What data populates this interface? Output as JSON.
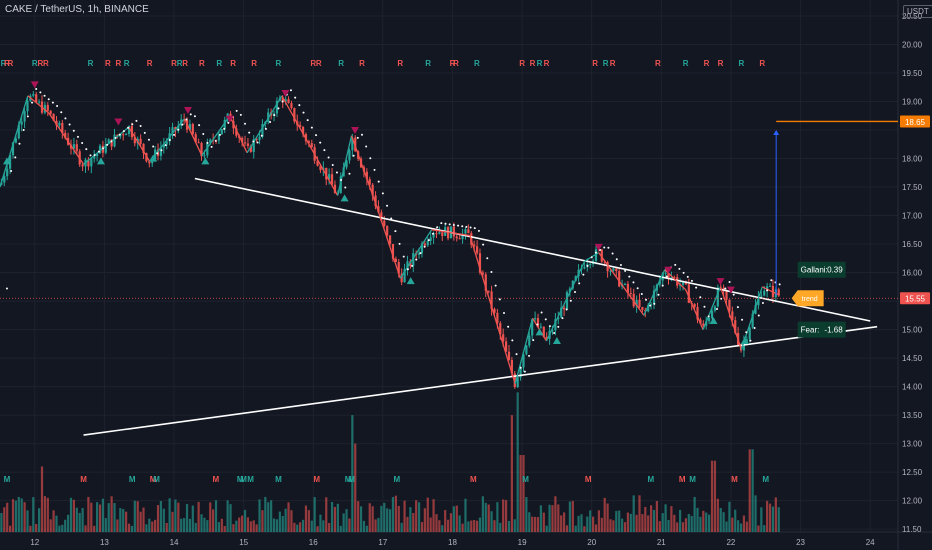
{
  "header": {
    "title": "CAKE / TetherUS, 1h, BINANCE",
    "currency": "USDT"
  },
  "colors": {
    "background": "#131722",
    "grid": "#1e222d",
    "up": "#26a69a",
    "down": "#ef5350",
    "zigzag_up": "#26a69a",
    "zigzag_down": "#ef5350",
    "trend": "#ffffff",
    "target": "#f57c00",
    "arrow": "#2962ff",
    "last_price": "#ef5350",
    "trend_label": "#ffa726",
    "marker_up": "#26a69a",
    "marker_down": "#ad1457"
  },
  "chart_data": {
    "type": "candlestick",
    "title": "CAKE / TetherUS, 1h, BINANCE",
    "x_ticks": [
      "12",
      "13",
      "14",
      "15",
      "16",
      "17",
      "18",
      "19",
      "20",
      "21",
      "22",
      "23",
      "24"
    ],
    "x_range": [
      11.5,
      24.4
    ],
    "y_range": [
      11.45,
      20.78
    ],
    "y_ticks": [
      "11.50",
      "12.00",
      "12.50",
      "13.00",
      "13.50",
      "14.00",
      "14.50",
      "15.00",
      "15.50",
      "16.00",
      "16.50",
      "17.00",
      "17.50",
      "18.00",
      "18.50",
      "19.00",
      "19.50",
      "20.00",
      "20.50"
    ],
    "last_price": {
      "value": 15.55,
      "label": "15.55"
    },
    "target": {
      "value": 18.65,
      "label": "18.65",
      "x_start": 22.65
    },
    "trendlines": [
      {
        "from": [
          14.3,
          17.65
        ],
        "to": [
          24.0,
          15.15
        ]
      },
      {
        "from": [
          12.7,
          13.15
        ],
        "to": [
          24.1,
          15.05
        ]
      }
    ],
    "arrow": {
      "x": 22.65,
      "from": 15.6,
      "to": 18.5
    },
    "zigzag": [
      {
        "x": 11.5,
        "y": 17.5
      },
      {
        "x": 11.9,
        "y": 19.1
      },
      {
        "x": 12.2,
        "y": 18.8
      },
      {
        "x": 12.7,
        "y": 17.9
      },
      {
        "x": 13.35,
        "y": 18.55
      },
      {
        "x": 13.65,
        "y": 17.95
      },
      {
        "x": 14.15,
        "y": 18.7
      },
      {
        "x": 14.4,
        "y": 18.05
      },
      {
        "x": 14.8,
        "y": 18.75
      },
      {
        "x": 15.05,
        "y": 18.1
      },
      {
        "x": 15.55,
        "y": 19.1
      },
      {
        "x": 16.35,
        "y": 17.35
      },
      {
        "x": 16.55,
        "y": 18.4
      },
      {
        "x": 16.9,
        "y": 17.2
      },
      {
        "x": 17.25,
        "y": 15.9
      },
      {
        "x": 17.7,
        "y": 16.75
      },
      {
        "x": 18.25,
        "y": 16.65
      },
      {
        "x": 18.9,
        "y": 14.05
      },
      {
        "x": 19.15,
        "y": 15.2
      },
      {
        "x": 19.35,
        "y": 14.8
      },
      {
        "x": 19.9,
        "y": 16.2
      },
      {
        "x": 20.1,
        "y": 16.35
      },
      {
        "x": 20.75,
        "y": 15.25
      },
      {
        "x": 21.05,
        "y": 16.05
      },
      {
        "x": 21.35,
        "y": 15.7
      },
      {
        "x": 21.6,
        "y": 15.0
      },
      {
        "x": 21.85,
        "y": 15.75
      },
      {
        "x": 22.15,
        "y": 14.65
      },
      {
        "x": 22.45,
        "y": 15.75
      },
      {
        "x": 22.7,
        "y": 15.6
      }
    ],
    "markers_up": [
      {
        "x": 11.6,
        "y": 17.95
      },
      {
        "x": 12.95,
        "y": 17.95
      },
      {
        "x": 13.7,
        "y": 18.0
      },
      {
        "x": 14.45,
        "y": 17.95
      },
      {
        "x": 16.45,
        "y": 17.3
      },
      {
        "x": 17.4,
        "y": 15.85
      },
      {
        "x": 19.25,
        "y": 14.95
      },
      {
        "x": 19.5,
        "y": 14.8
      },
      {
        "x": 21.75,
        "y": 15.15
      },
      {
        "x": 22.2,
        "y": 14.8
      }
    ],
    "markers_down": [
      {
        "x": 12.0,
        "y": 19.3
      },
      {
        "x": 13.2,
        "y": 18.65
      },
      {
        "x": 14.2,
        "y": 18.85
      },
      {
        "x": 14.8,
        "y": 18.7
      },
      {
        "x": 15.6,
        "y": 19.15
      },
      {
        "x": 16.6,
        "y": 18.5
      },
      {
        "x": 20.1,
        "y": 16.45
      },
      {
        "x": 21.1,
        "y": 16.05
      },
      {
        "x": 21.85,
        "y": 15.85
      },
      {
        "x": 22.0,
        "y": 15.7
      }
    ],
    "r_labels": [
      11.55,
      11.6,
      11.65,
      12.0,
      12.08,
      12.16,
      12.8,
      13.05,
      13.2,
      13.32,
      13.65,
      14.0,
      14.08,
      14.16,
      14.4,
      14.65,
      14.85,
      15.15,
      15.5,
      16.0,
      16.08,
      16.4,
      16.7,
      17.25,
      17.65,
      18.0,
      18.05,
      18.35,
      19.0,
      19.15,
      19.25,
      19.35,
      20.05,
      20.2,
      20.3,
      20.95,
      21.35,
      21.65,
      21.85,
      22.15,
      22.45
    ],
    "m_labels": [
      {
        "x": 11.6,
        "color": "up"
      },
      {
        "x": 12.7,
        "color": "down"
      },
      {
        "x": 13.4,
        "color": "up"
      },
      {
        "x": 13.7,
        "color": "down"
      },
      {
        "x": 13.75,
        "color": "up"
      },
      {
        "x": 14.6,
        "color": "down"
      },
      {
        "x": 14.95,
        "color": "up"
      },
      {
        "x": 15.0,
        "color": "up"
      },
      {
        "x": 15.1,
        "color": "up"
      },
      {
        "x": 15.5,
        "color": "up"
      },
      {
        "x": 16.05,
        "color": "down"
      },
      {
        "x": 16.5,
        "color": "up"
      },
      {
        "x": 16.55,
        "color": "up"
      },
      {
        "x": 17.2,
        "color": "up"
      },
      {
        "x": 18.3,
        "color": "down"
      },
      {
        "x": 19.05,
        "color": "up"
      },
      {
        "x": 19.95,
        "color": "down"
      },
      {
        "x": 20.85,
        "color": "up"
      },
      {
        "x": 21.3,
        "color": "down"
      },
      {
        "x": 21.45,
        "color": "up"
      },
      {
        "x": 22.05,
        "color": "down"
      },
      {
        "x": 22.5,
        "color": "up"
      }
    ],
    "indicators": [
      {
        "label": "Gallani:",
        "value": "0.39",
        "x": 22.7,
        "y": 16.05,
        "style": "dark"
      },
      {
        "label": "",
        "value": "trend",
        "x": 22.7,
        "y": 15.55,
        "style": "trend"
      },
      {
        "label": "Fear:",
        "value": "-1.68",
        "x": 22.7,
        "y": 15.0,
        "style": "dark"
      }
    ],
    "r_label_text": "R",
    "m_label_text": "M"
  }
}
